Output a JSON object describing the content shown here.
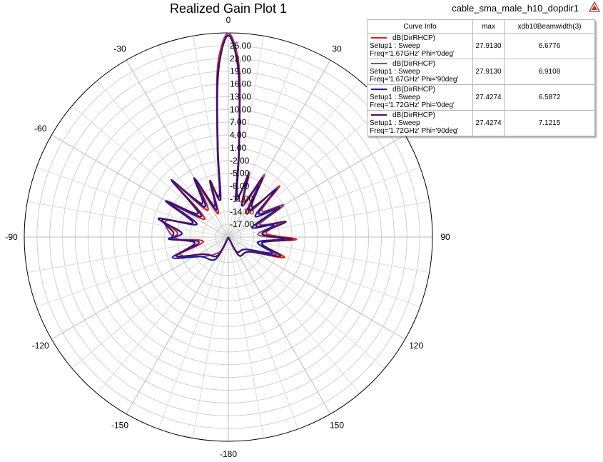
{
  "title": "Realized Gain Plot 1",
  "design_name": "cable_sma_male_h10_dopdir1",
  "logo_icon": "ansys-logo-icon",
  "legend": {
    "headers": [
      "Curve Info",
      "max",
      "xdb10Beamwidth(3)"
    ],
    "rows": [
      {
        "line1": "dB(DirRHCP)",
        "line2": "Setup1 : Sweep",
        "line3": "Freq='1.67GHz' Phi='0deg'",
        "max": "27.9130",
        "beamwidth": "6.6776",
        "color": "#e0201c"
      },
      {
        "line1": "dB(DirRHCP)",
        "line2": "Setup1 : Sweep",
        "line3": "Freq='1.67GHz' Phi='90deg'",
        "max": "27.9130",
        "beamwidth": "6.9108",
        "color": "#8a4a7a"
      },
      {
        "line1": "dB(DirRHCP)",
        "line2": "Setup1 : Sweep",
        "line3": "Freq='1.72GHz' Phi='0deg'",
        "max": "27.4274",
        "beamwidth": "6.5872",
        "color": "#1c1ca8"
      },
      {
        "line1": "dB(DirRHCP)",
        "line2": "Setup1 : Sweep",
        "line3": "Freq='1.72GHz' Phi='90deg'",
        "max": "27.4274",
        "beamwidth": "7.1215",
        "color": "#4a1060"
      }
    ]
  },
  "chart_data": {
    "type": "polar-line",
    "title": "Realized Gain Plot 1",
    "angle_unit": "deg",
    "angle_labels": [
      {
        "deg": 0,
        "label": "0"
      },
      {
        "deg": 30,
        "label": "30"
      },
      {
        "deg": 60,
        "label": "60"
      },
      {
        "deg": 90,
        "label": "90"
      },
      {
        "deg": 120,
        "label": "120"
      },
      {
        "deg": 150,
        "label": "150"
      },
      {
        "deg": 180,
        "label": "-180"
      },
      {
        "deg": -150,
        "label": "-150"
      },
      {
        "deg": -120,
        "label": "-120"
      },
      {
        "deg": -90,
        "label": "-90"
      },
      {
        "deg": -60,
        "label": "-60"
      },
      {
        "deg": -30,
        "label": "-30"
      }
    ],
    "radial_min": -20,
    "radial_max": 28,
    "radial_ticks": [
      25,
      22,
      19,
      16,
      13,
      10,
      7,
      4,
      1,
      -2,
      -5,
      -8,
      -11,
      -14,
      -17
    ],
    "radial_tick_labels": [
      "25.00",
      "22.00",
      "19.00",
      "16.00",
      "13.00",
      "10.00",
      "7.00",
      "4.00",
      "1.00",
      "-2.00",
      "-5.00",
      "-8.00",
      "-11.00",
      "-14.00",
      "-17.00"
    ],
    "grid": true,
    "legend_position": "top-right",
    "series": [
      {
        "color": "#e0201c",
        "max": 27.913,
        "points": [
          [
            -180,
            -20
          ],
          [
            -150,
            -15
          ],
          [
            -125,
            -13
          ],
          [
            -110,
            -7
          ],
          [
            -100,
            -14
          ],
          [
            -92,
            -7
          ],
          [
            -85,
            -8
          ],
          [
            -75,
            -4
          ],
          [
            -68,
            -12
          ],
          [
            -60,
            -5
          ],
          [
            -52,
            -13
          ],
          [
            -45,
            -2
          ],
          [
            -38,
            -12
          ],
          [
            -30,
            -6
          ],
          [
            -24,
            -14
          ],
          [
            -18,
            -8
          ],
          [
            -12,
            -10
          ],
          [
            -7,
            1
          ],
          [
            -4,
            18
          ],
          [
            -2,
            25
          ],
          [
            0,
            27.9
          ],
          [
            2,
            25
          ],
          [
            4,
            18
          ],
          [
            7,
            1
          ],
          [
            12,
            -10
          ],
          [
            18,
            -6
          ],
          [
            24,
            -11
          ],
          [
            30,
            -5
          ],
          [
            38,
            -13
          ],
          [
            45,
            -3
          ],
          [
            52,
            -11
          ],
          [
            60,
            -6
          ],
          [
            68,
            -13
          ],
          [
            75,
            -8
          ],
          [
            85,
            -11
          ],
          [
            92,
            -4
          ],
          [
            100,
            -12
          ],
          [
            110,
            -6
          ],
          [
            125,
            -14
          ],
          [
            150,
            -15
          ],
          [
            180,
            -20
          ]
        ]
      },
      {
        "color": "#8a4a7a",
        "max": 27.913,
        "points": [
          [
            -180,
            -20
          ],
          [
            -150,
            -16
          ],
          [
            -125,
            -12
          ],
          [
            -110,
            -8
          ],
          [
            -100,
            -12
          ],
          [
            -92,
            -8
          ],
          [
            -85,
            -6
          ],
          [
            -75,
            -5
          ],
          [
            -68,
            -11
          ],
          [
            -60,
            -4
          ],
          [
            -52,
            -12
          ],
          [
            -45,
            -3
          ],
          [
            -38,
            -11
          ],
          [
            -30,
            -5
          ],
          [
            -24,
            -13
          ],
          [
            -18,
            -7
          ],
          [
            -12,
            -11
          ],
          [
            -7,
            0
          ],
          [
            -4,
            17
          ],
          [
            -2,
            24.5
          ],
          [
            0,
            27.9
          ],
          [
            2,
            24.5
          ],
          [
            4,
            17
          ],
          [
            7,
            0
          ],
          [
            12,
            -11
          ],
          [
            18,
            -4
          ],
          [
            24,
            -12
          ],
          [
            30,
            -3
          ],
          [
            38,
            -12
          ],
          [
            45,
            -4
          ],
          [
            52,
            -10
          ],
          [
            60,
            -5
          ],
          [
            68,
            -12
          ],
          [
            75,
            -7
          ],
          [
            85,
            -13
          ],
          [
            92,
            -6
          ],
          [
            100,
            -13
          ],
          [
            110,
            -8
          ],
          [
            125,
            -15
          ],
          [
            150,
            -16
          ],
          [
            180,
            -20
          ]
        ]
      },
      {
        "color": "#1c1ca8",
        "max": 27.4274,
        "points": [
          [
            -180,
            -20
          ],
          [
            -150,
            -14
          ],
          [
            -125,
            -12
          ],
          [
            -110,
            -6
          ],
          [
            -100,
            -13
          ],
          [
            -92,
            -6
          ],
          [
            -85,
            -9
          ],
          [
            -75,
            -3
          ],
          [
            -68,
            -12
          ],
          [
            -60,
            -4
          ],
          [
            -52,
            -12
          ],
          [
            -45,
            -1
          ],
          [
            -38,
            -11
          ],
          [
            -30,
            -5
          ],
          [
            -24,
            -13
          ],
          [
            -18,
            -7
          ],
          [
            -12,
            -10
          ],
          [
            -7,
            1
          ],
          [
            -4,
            17
          ],
          [
            -2,
            24
          ],
          [
            0,
            27.4
          ],
          [
            2,
            24
          ],
          [
            4,
            17
          ],
          [
            7,
            1
          ],
          [
            12,
            -10
          ],
          [
            18,
            -7
          ],
          [
            24,
            -12
          ],
          [
            30,
            -6
          ],
          [
            38,
            -12
          ],
          [
            45,
            -4
          ],
          [
            52,
            -12
          ],
          [
            60,
            -7
          ],
          [
            68,
            -14
          ],
          [
            75,
            -9
          ],
          [
            85,
            -12
          ],
          [
            92,
            -7
          ],
          [
            100,
            -13
          ],
          [
            110,
            -9
          ],
          [
            125,
            -15
          ],
          [
            150,
            -16
          ],
          [
            180,
            -20
          ]
        ]
      },
      {
        "color": "#4a1060",
        "max": 27.4274,
        "points": [
          [
            -180,
            -20
          ],
          [
            -150,
            -15
          ],
          [
            -125,
            -13
          ],
          [
            -110,
            -7
          ],
          [
            -100,
            -12
          ],
          [
            -92,
            -7
          ],
          [
            -85,
            -7
          ],
          [
            -75,
            -4
          ],
          [
            -68,
            -11
          ],
          [
            -60,
            -3
          ],
          [
            -52,
            -11
          ],
          [
            -45,
            -2
          ],
          [
            -38,
            -10
          ],
          [
            -30,
            -4
          ],
          [
            -24,
            -12
          ],
          [
            -18,
            -6
          ],
          [
            -12,
            -11
          ],
          [
            -7,
            0
          ],
          [
            -4,
            16
          ],
          [
            -2,
            24
          ],
          [
            0,
            27.4
          ],
          [
            2,
            24
          ],
          [
            4,
            16
          ],
          [
            7,
            0
          ],
          [
            12,
            -11
          ],
          [
            18,
            -5
          ],
          [
            24,
            -12
          ],
          [
            30,
            -4
          ],
          [
            38,
            -11
          ],
          [
            45,
            -5
          ],
          [
            52,
            -11
          ],
          [
            60,
            -6
          ],
          [
            68,
            -13
          ],
          [
            75,
            -6
          ],
          [
            85,
            -12
          ],
          [
            92,
            -5
          ],
          [
            100,
            -12
          ],
          [
            110,
            -7
          ],
          [
            125,
            -14
          ],
          [
            150,
            -15
          ],
          [
            180,
            -20
          ]
        ]
      }
    ]
  }
}
